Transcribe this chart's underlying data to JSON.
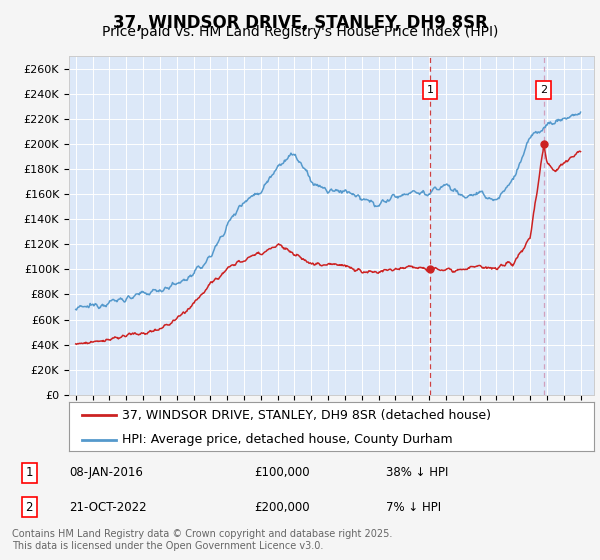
{
  "title": "37, WINDSOR DRIVE, STANLEY, DH9 8SR",
  "subtitle": "Price paid vs. HM Land Registry's House Price Index (HPI)",
  "ylim": [
    0,
    270000
  ],
  "background_color": "#dce8f8",
  "plot_bg_color": "#dce8f8",
  "grid_color": "#ffffff",
  "hpi_color": "#5599cc",
  "price_color": "#cc2222",
  "vline1_color": "#cc2222",
  "vline2_color": "#cc88aa",
  "marker1_date": 2016.05,
  "marker2_date": 2022.8,
  "marker1_price": 100000,
  "marker2_price": 200000,
  "legend_label_price": "37, WINDSOR DRIVE, STANLEY, DH9 8SR (detached house)",
  "legend_label_hpi": "HPI: Average price, detached house, County Durham",
  "annotation1": "08-JAN-2016",
  "annotation1_val": "£100,000",
  "annotation1_hpi": "38% ↓ HPI",
  "annotation2": "21-OCT-2022",
  "annotation2_val": "£200,000",
  "annotation2_hpi": "7% ↓ HPI",
  "footer": "Contains HM Land Registry data © Crown copyright and database right 2025.\nThis data is licensed under the Open Government Licence v3.0.",
  "title_fontsize": 12,
  "subtitle_fontsize": 10,
  "tick_fontsize": 8,
  "legend_fontsize": 9
}
